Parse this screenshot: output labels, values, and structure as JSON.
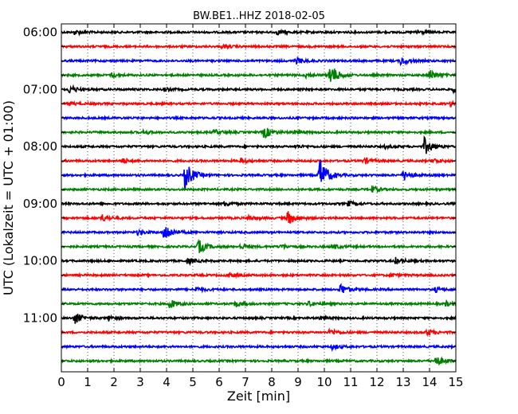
{
  "chart_data": {
    "type": "line",
    "title": "BW.BE1..HHZ 2018-02-05",
    "xlabel": "Zeit  [min]",
    "ylabel": "UTC (Lokalzeit = UTC + 01:00)",
    "xlim": [
      0,
      15
    ],
    "x_ticks": [
      "0",
      "1",
      "2",
      "3",
      "4",
      "5",
      "6",
      "7",
      "8",
      "9",
      "10",
      "11",
      "12",
      "13",
      "14",
      "15"
    ],
    "y_tick_labels": [
      "06:00",
      "07:00",
      "08:00",
      "09:00",
      "10:00",
      "11:00"
    ],
    "grid": "vertical dotted",
    "trace_colors": [
      "#000000",
      "#ff0000",
      "#0000ff",
      "#008000"
    ],
    "traces": [
      {
        "start": "06:00",
        "events": [
          {
            "t": 0.5,
            "a": 0.25
          },
          {
            "t": 8.2,
            "a": 0.25
          },
          {
            "t": 13.5,
            "a": 0.3
          }
        ]
      },
      {
        "start": "06:15",
        "events": [
          {
            "t": 6.1,
            "a": 0.2
          }
        ]
      },
      {
        "start": "06:30",
        "events": [
          {
            "t": 8.9,
            "a": 0.4
          },
          {
            "t": 12.9,
            "a": 0.5
          }
        ]
      },
      {
        "start": "06:45",
        "events": [
          {
            "t": 1.9,
            "a": 0.3
          },
          {
            "t": 9.3,
            "a": 0.3
          },
          {
            "t": 10.2,
            "a": 1.5
          },
          {
            "t": 14.0,
            "a": 0.7
          }
        ]
      },
      {
        "start": "07:00",
        "events": [
          {
            "t": 0.3,
            "a": 0.5
          },
          {
            "t": 3.9,
            "a": 0.2
          },
          {
            "t": 14.9,
            "a": 0.3
          }
        ]
      },
      {
        "start": "07:15",
        "events": [
          {
            "t": 0.3,
            "a": 0.2
          },
          {
            "t": 14.8,
            "a": 0.3
          }
        ]
      },
      {
        "start": "07:30",
        "events": []
      },
      {
        "start": "07:45",
        "events": [
          {
            "t": 3.1,
            "a": 0.2
          },
          {
            "t": 5.8,
            "a": 0.3
          },
          {
            "t": 7.7,
            "a": 0.8
          },
          {
            "t": 8.8,
            "a": 0.2
          }
        ]
      },
      {
        "start": "08:00",
        "events": [
          {
            "t": 8.9,
            "a": 0.2
          },
          {
            "t": 12.3,
            "a": 0.2
          },
          {
            "t": 13.8,
            "a": 1.1
          }
        ]
      },
      {
        "start": "08:15",
        "events": [
          {
            "t": 2.3,
            "a": 0.3
          },
          {
            "t": 6.8,
            "a": 0.3
          },
          {
            "t": 11.5,
            "a": 0.4
          },
          {
            "t": 14.1,
            "a": 0.3
          }
        ]
      },
      {
        "start": "08:30",
        "events": [
          {
            "t": 4.7,
            "a": 1.8
          },
          {
            "t": 9.8,
            "a": 2.4
          },
          {
            "t": 13.0,
            "a": 0.7
          }
        ]
      },
      {
        "start": "08:45",
        "events": [
          {
            "t": 11.8,
            "a": 0.4
          }
        ]
      },
      {
        "start": "09:00",
        "events": [
          {
            "t": 6.2,
            "a": 0.3
          },
          {
            "t": 10.9,
            "a": 0.3
          }
        ]
      },
      {
        "start": "09:15",
        "events": [
          {
            "t": 1.5,
            "a": 0.5
          },
          {
            "t": 7.1,
            "a": 0.3
          },
          {
            "t": 8.6,
            "a": 0.9
          }
        ]
      },
      {
        "start": "09:30",
        "events": [
          {
            "t": 2.9,
            "a": 0.3
          },
          {
            "t": 3.9,
            "a": 1.2
          }
        ]
      },
      {
        "start": "09:45",
        "events": [
          {
            "t": 5.2,
            "a": 0.9
          },
          {
            "t": 6.8,
            "a": 0.3
          },
          {
            "t": 8.3,
            "a": 0.3
          },
          {
            "t": 10.3,
            "a": 0.3
          }
        ]
      },
      {
        "start": "10:00",
        "events": [
          {
            "t": 4.8,
            "a": 0.4
          },
          {
            "t": 12.7,
            "a": 0.4
          }
        ]
      },
      {
        "start": "10:15",
        "events": [
          {
            "t": 6.3,
            "a": 0.3
          },
          {
            "t": 12.5,
            "a": 0.2
          }
        ]
      },
      {
        "start": "10:30",
        "events": [
          {
            "t": 5.1,
            "a": 0.3
          },
          {
            "t": 10.6,
            "a": 0.7
          },
          {
            "t": 14.2,
            "a": 0.3
          }
        ]
      },
      {
        "start": "10:45",
        "events": [
          {
            "t": 4.1,
            "a": 0.6
          },
          {
            "t": 6.6,
            "a": 0.4
          },
          {
            "t": 9.4,
            "a": 0.3
          },
          {
            "t": 14.6,
            "a": 0.3
          }
        ]
      },
      {
        "start": "11:00",
        "events": [
          {
            "t": 0.5,
            "a": 0.7
          },
          {
            "t": 1.8,
            "a": 0.3
          },
          {
            "t": 9.8,
            "a": 0.2
          }
        ]
      },
      {
        "start": "11:15",
        "events": [
          {
            "t": 10.2,
            "a": 0.4
          },
          {
            "t": 13.9,
            "a": 0.4
          }
        ]
      },
      {
        "start": "11:30",
        "events": [
          {
            "t": 10.3,
            "a": 0.3
          }
        ]
      },
      {
        "start": "11:45",
        "events": [
          {
            "t": 14.2,
            "a": 0.7
          }
        ]
      }
    ]
  }
}
